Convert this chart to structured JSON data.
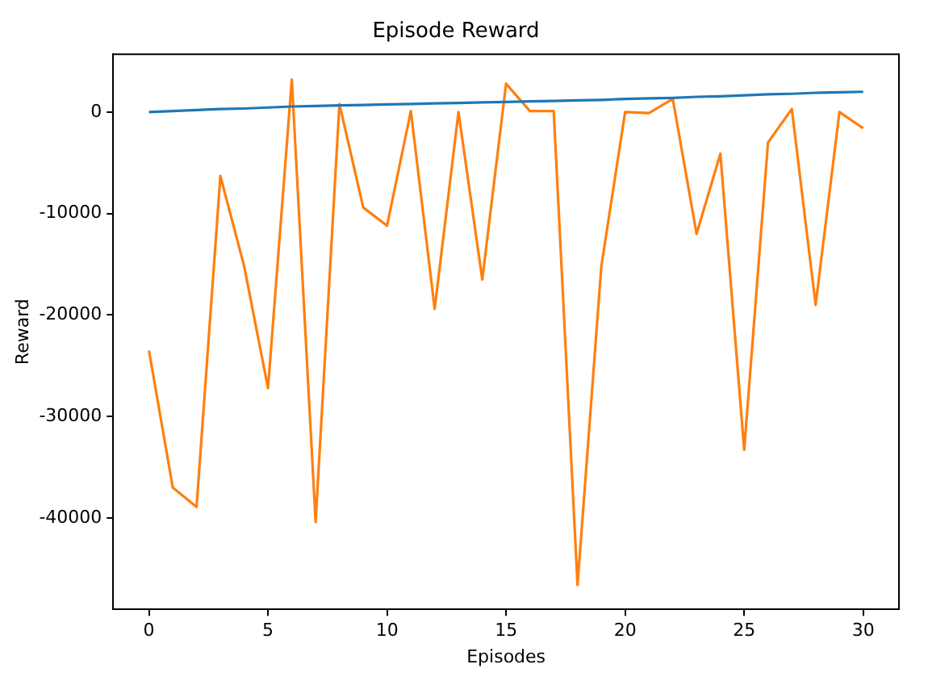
{
  "chart_data": {
    "type": "line",
    "title": "Episode Reward",
    "xlabel": "Episodes",
    "ylabel": "Reward",
    "x": [
      0,
      1,
      2,
      3,
      4,
      5,
      6,
      7,
      8,
      9,
      10,
      11,
      12,
      13,
      14,
      15,
      16,
      17,
      18,
      19,
      20,
      21,
      22,
      23,
      24,
      25,
      26,
      27,
      28,
      29,
      30
    ],
    "series": [
      {
        "color": "#1f77b4",
        "values": [
          0,
          100,
          200,
          300,
          350,
          450,
          550,
          600,
          650,
          700,
          750,
          800,
          850,
          900,
          950,
          1000,
          1050,
          1100,
          1150,
          1200,
          1300,
          1350,
          1400,
          1500,
          1550,
          1650,
          1750,
          1800,
          1900,
          1950,
          2000
        ]
      },
      {
        "color": "#ff7f0e",
        "values": [
          -23500,
          -37000,
          -38900,
          -6300,
          -15200,
          -27200,
          3200,
          -40400,
          800,
          -9400,
          -11200,
          100,
          -19400,
          0,
          -16500,
          2800,
          100,
          100,
          -46600,
          -15200,
          0,
          -100,
          1300,
          -12000,
          -4100,
          -33300,
          -3000,
          300,
          -19000,
          0,
          -1600
        ]
      }
    ],
    "xlim": [
      -1.5,
      31.5
    ],
    "xticks": [
      0,
      5,
      10,
      15,
      20,
      25,
      30
    ],
    "ylim": [
      -49000,
      5700
    ],
    "yticks": [
      -40000,
      -30000,
      -20000,
      -10000,
      0
    ],
    "grid": false,
    "legend": false
  }
}
